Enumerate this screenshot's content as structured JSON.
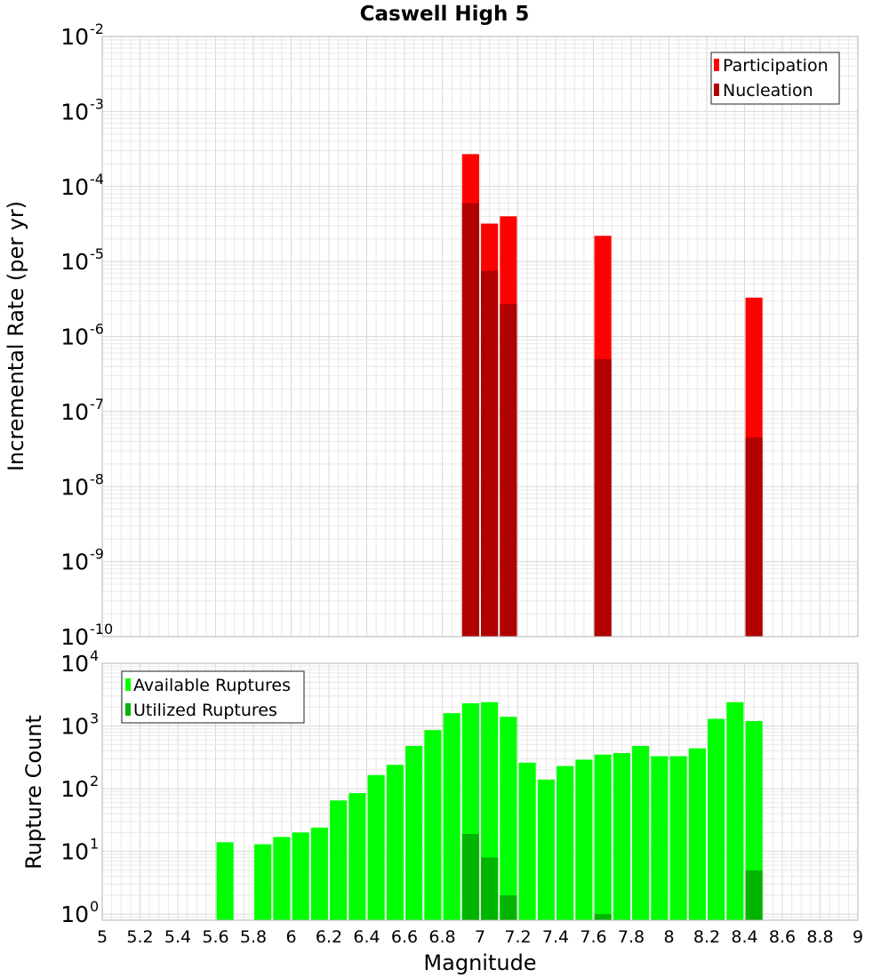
{
  "chart_data": [
    {
      "type": "bar",
      "title": "Caswell High 5",
      "xlabel": "Magnitude",
      "ylabel": "Incremental Rate (per yr)",
      "y_scale": "log",
      "ylim": [
        1e-10,
        0.01
      ],
      "y_ticks": [
        {
          "base": "10",
          "exp": "-10"
        },
        {
          "base": "10",
          "exp": "-9"
        },
        {
          "base": "10",
          "exp": "-8"
        },
        {
          "base": "10",
          "exp": "-7"
        },
        {
          "base": "10",
          "exp": "-6"
        },
        {
          "base": "10",
          "exp": "-5"
        },
        {
          "base": "10",
          "exp": "-4"
        },
        {
          "base": "10",
          "exp": "-3"
        },
        {
          "base": "10",
          "exp": "-2"
        }
      ],
      "legend_position": "top-right",
      "grid": true,
      "series": [
        {
          "name": "Participation",
          "color": "#ff0000",
          "x": [
            6.95,
            7.05,
            7.15,
            7.65,
            8.45
          ],
          "values": [
            0.00027,
            3.2e-05,
            4e-05,
            2.2e-05,
            3.3e-06
          ]
        },
        {
          "name": "Nucleation",
          "color": "#b00000",
          "x": [
            6.95,
            7.05,
            7.15,
            7.65,
            8.45
          ],
          "values": [
            6e-05,
            7.5e-06,
            2.7e-06,
            5e-07,
            4.5e-08
          ]
        }
      ]
    },
    {
      "type": "bar",
      "xlabel": "Magnitude",
      "ylabel": "Rupture Count",
      "y_scale": "log",
      "ylim": [
        0.8,
        10000
      ],
      "y_ticks": [
        {
          "base": "10",
          "exp": "0"
        },
        {
          "base": "10",
          "exp": "1"
        },
        {
          "base": "10",
          "exp": "2"
        },
        {
          "base": "10",
          "exp": "3"
        },
        {
          "base": "10",
          "exp": "4"
        }
      ],
      "xlim": [
        5,
        9
      ],
      "x_ticks": [
        "5",
        "5.2",
        "5.4",
        "5.6",
        "5.8",
        "6",
        "6.2",
        "6.4",
        "6.6",
        "6.8",
        "7",
        "7.2",
        "7.4",
        "7.6",
        "7.8",
        "8",
        "8.2",
        "8.4",
        "8.6",
        "8.8",
        "9"
      ],
      "legend_position": "top-left",
      "grid": true,
      "series": [
        {
          "name": "Available Ruptures",
          "color": "#00ff00",
          "x": [
            5.65,
            5.85,
            5.95,
            6.05,
            6.15,
            6.25,
            6.35,
            6.45,
            6.55,
            6.65,
            6.75,
            6.85,
            6.95,
            7.05,
            7.15,
            7.25,
            7.35,
            7.45,
            7.55,
            7.65,
            7.75,
            7.85,
            7.95,
            8.05,
            8.15,
            8.25,
            8.35,
            8.45
          ],
          "values": [
            14,
            13,
            17,
            20,
            24,
            65,
            85,
            165,
            240,
            480,
            860,
            1600,
            2300,
            2400,
            1400,
            260,
            140,
            230,
            290,
            350,
            370,
            480,
            330,
            330,
            440,
            1300,
            2400,
            1200
          ]
        },
        {
          "name": "Utilized Ruptures",
          "color": "#00b400",
          "x": [
            6.95,
            7.05,
            7.15,
            7.65,
            8.45
          ],
          "values": [
            19,
            8,
            2,
            1,
            5
          ]
        }
      ]
    }
  ]
}
